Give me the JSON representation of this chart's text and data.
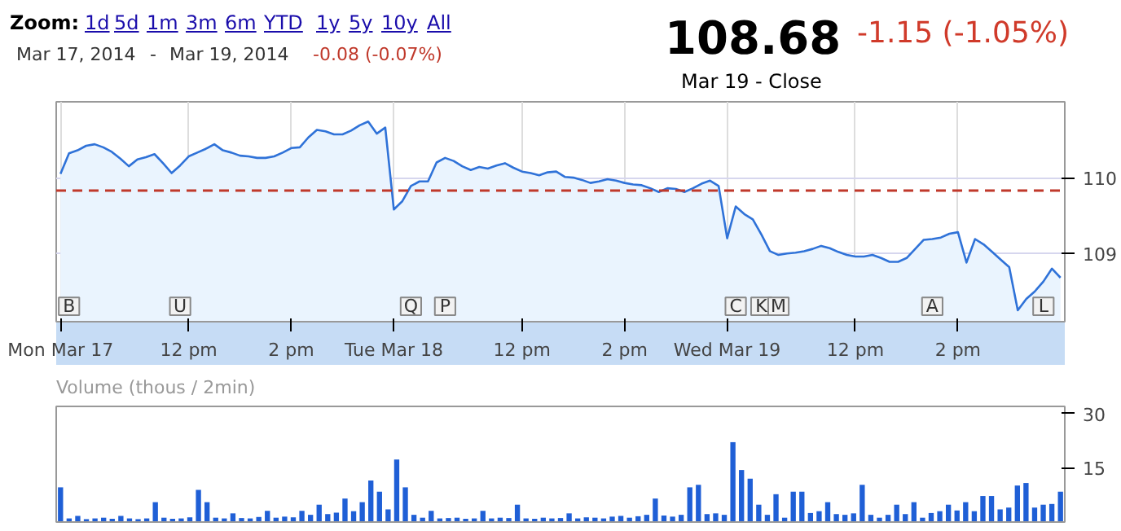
{
  "chart_data": [
    {
      "type": "area",
      "color": "#2f72d8",
      "categories": [
        "Mon Mar 17",
        null,
        null,
        null,
        null,
        null,
        null,
        null,
        null,
        null,
        null,
        null,
        null,
        null,
        null,
        "12 pm",
        null,
        null,
        null,
        null,
        null,
        null,
        null,
        null,
        null,
        null,
        null,
        "2 pm",
        null,
        null,
        null,
        null,
        null,
        null,
        null,
        null,
        null,
        null,
        null,
        "Tue Mar 18",
        null,
        null,
        null,
        null,
        null,
        null,
        null,
        null,
        null,
        null,
        null,
        null,
        null,
        null,
        "12 pm",
        null,
        null,
        null,
        null,
        null,
        null,
        null,
        null,
        null,
        null,
        null,
        "2 pm",
        null,
        null,
        null,
        null,
        null,
        null,
        null,
        null,
        null,
        null,
        null,
        "Wed Mar 19",
        null,
        null,
        null,
        null,
        null,
        null,
        null,
        null,
        null,
        null,
        null,
        null,
        null,
        null,
        "12 pm",
        null,
        null,
        null,
        null,
        null,
        null,
        null,
        null,
        null,
        null,
        null,
        "2 pm",
        null,
        null,
        null,
        null,
        null,
        null,
        null,
        null,
        null,
        null,
        null,
        null
      ],
      "values": [
        110.05,
        110.32,
        110.36,
        110.42,
        110.44,
        110.4,
        110.34,
        110.25,
        110.15,
        110.24,
        110.27,
        110.31,
        110.19,
        110.06,
        110.16,
        110.28,
        110.33,
        110.38,
        110.44,
        110.36,
        110.33,
        110.29,
        110.28,
        110.26,
        110.26,
        110.28,
        110.33,
        110.39,
        110.4,
        110.53,
        110.63,
        110.61,
        110.57,
        110.57,
        110.62,
        110.69,
        110.74,
        110.58,
        110.66,
        109.58,
        109.69,
        109.89,
        109.95,
        109.95,
        110.2,
        110.26,
        110.22,
        110.15,
        110.1,
        110.14,
        110.12,
        110.16,
        110.19,
        110.13,
        110.08,
        110.06,
        110.03,
        110.07,
        110.08,
        110.01,
        110.0,
        109.97,
        109.93,
        109.95,
        109.98,
        109.96,
        109.93,
        109.91,
        109.9,
        109.86,
        109.81,
        109.86,
        109.85,
        109.81,
        109.86,
        109.92,
        109.96,
        109.89,
        109.2,
        109.62,
        109.52,
        109.45,
        109.25,
        109.03,
        108.98,
        109.0,
        109.01,
        109.03,
        109.06,
        109.1,
        109.07,
        109.02,
        108.98,
        108.96,
        108.96,
        108.98,
        108.94,
        108.89,
        108.89,
        108.94,
        109.06,
        109.18,
        109.19,
        109.21,
        109.26,
        109.28,
        108.88,
        109.19,
        109.12,
        109.02,
        108.92,
        108.82,
        108.25,
        108.4,
        108.5,
        108.63,
        108.8,
        108.68
      ],
      "ylim": [
        108.1,
        111.0
      ],
      "yticks": [
        109,
        110
      ],
      "grid": true,
      "ref_lines": [
        {
          "axis": "y",
          "value": 109.83,
          "color": "#c0392b",
          "line_style": "dashed"
        }
      ],
      "annotations": [
        "Zoom:",
        "1d",
        "5d",
        "1m",
        "3m",
        "6m",
        "YTD",
        "1y",
        "5y",
        "10y",
        "All",
        "Mar 17, 2014",
        "-",
        "Mar 19, 2014",
        "-0.08 (-0.07%)",
        "108.68",
        "-1.15 (-1.05%)",
        "Mar 19 - Close",
        "B",
        "U",
        "Q",
        "P",
        "C",
        "K",
        "M",
        "A",
        "L"
      ]
    },
    {
      "type": "bar",
      "title": "Volume (thous / 2min)",
      "color": "#1f5fd6",
      "categories": [
        null,
        null,
        null,
        null,
        null,
        null,
        null,
        null,
        null,
        null,
        null,
        null,
        null,
        null,
        null,
        null,
        null,
        null,
        null,
        null,
        null,
        null,
        null,
        null,
        null,
        null,
        null,
        null,
        null,
        null,
        null,
        null,
        null,
        null,
        null,
        null,
        null,
        null,
        null,
        null,
        null,
        null,
        null,
        null,
        null,
        null,
        null,
        null,
        null,
        null,
        null,
        null,
        null,
        null,
        null,
        null,
        null,
        null,
        null,
        null,
        null,
        null,
        null,
        null,
        null,
        null,
        null,
        null,
        null,
        null,
        null,
        null,
        null,
        null,
        null,
        null,
        null,
        null,
        null,
        null,
        null,
        null,
        null,
        null,
        null,
        null,
        null,
        null,
        null,
        null,
        null,
        null,
        null,
        null,
        null,
        null,
        null,
        null,
        null,
        null,
        null,
        null,
        null,
        null,
        null,
        null,
        null,
        null,
        null,
        null,
        null,
        null,
        null,
        null,
        null,
        null,
        null
      ],
      "values": [
        9.6,
        1.0,
        1.7,
        0.8,
        1.0,
        1.2,
        0.9,
        1.7,
        1.0,
        0.8,
        1.0,
        5.5,
        1.2,
        0.9,
        1.0,
        1.3,
        8.9,
        5.5,
        1.2,
        1.0,
        2.4,
        1.1,
        1.0,
        1.4,
        3.1,
        1.2,
        1.5,
        1.3,
        3.1,
        2.0,
        4.8,
        2.2,
        2.6,
        6.5,
        3.0,
        5.5,
        11.5,
        8.4,
        3.5,
        17.3,
        9.6,
        2.0,
        1.2,
        3.1,
        1.0,
        1.1,
        1.2,
        0.9,
        1.0,
        3.1,
        1.0,
        1.2,
        1.1,
        4.8,
        1.0,
        0.9,
        1.2,
        1.0,
        1.1,
        2.4,
        1.0,
        1.3,
        1.2,
        1.0,
        1.5,
        1.7,
        1.2,
        1.6,
        2.0,
        6.5,
        1.8,
        1.5,
        2.0,
        9.6,
        10.3,
        2.2,
        2.4,
        2.0,
        22.1,
        14.4,
        12.0,
        4.8,
        2.0,
        7.7,
        1.2,
        8.4,
        8.4,
        2.5,
        3.0,
        5.5,
        2.2,
        2.0,
        2.4,
        10.3,
        2.0,
        1.2,
        2.0,
        4.8,
        2.2,
        5.5,
        1.2,
        2.5,
        3.0,
        4.8,
        3.2,
        5.5,
        3.0,
        7.2,
        7.2,
        3.5,
        4.0,
        10.1,
        10.8,
        4.0,
        4.8,
        5.0,
        8.4
      ],
      "ylim": [
        0,
        32
      ],
      "yticks": [
        15,
        30
      ],
      "tick_labels": "y"
    }
  ]
}
